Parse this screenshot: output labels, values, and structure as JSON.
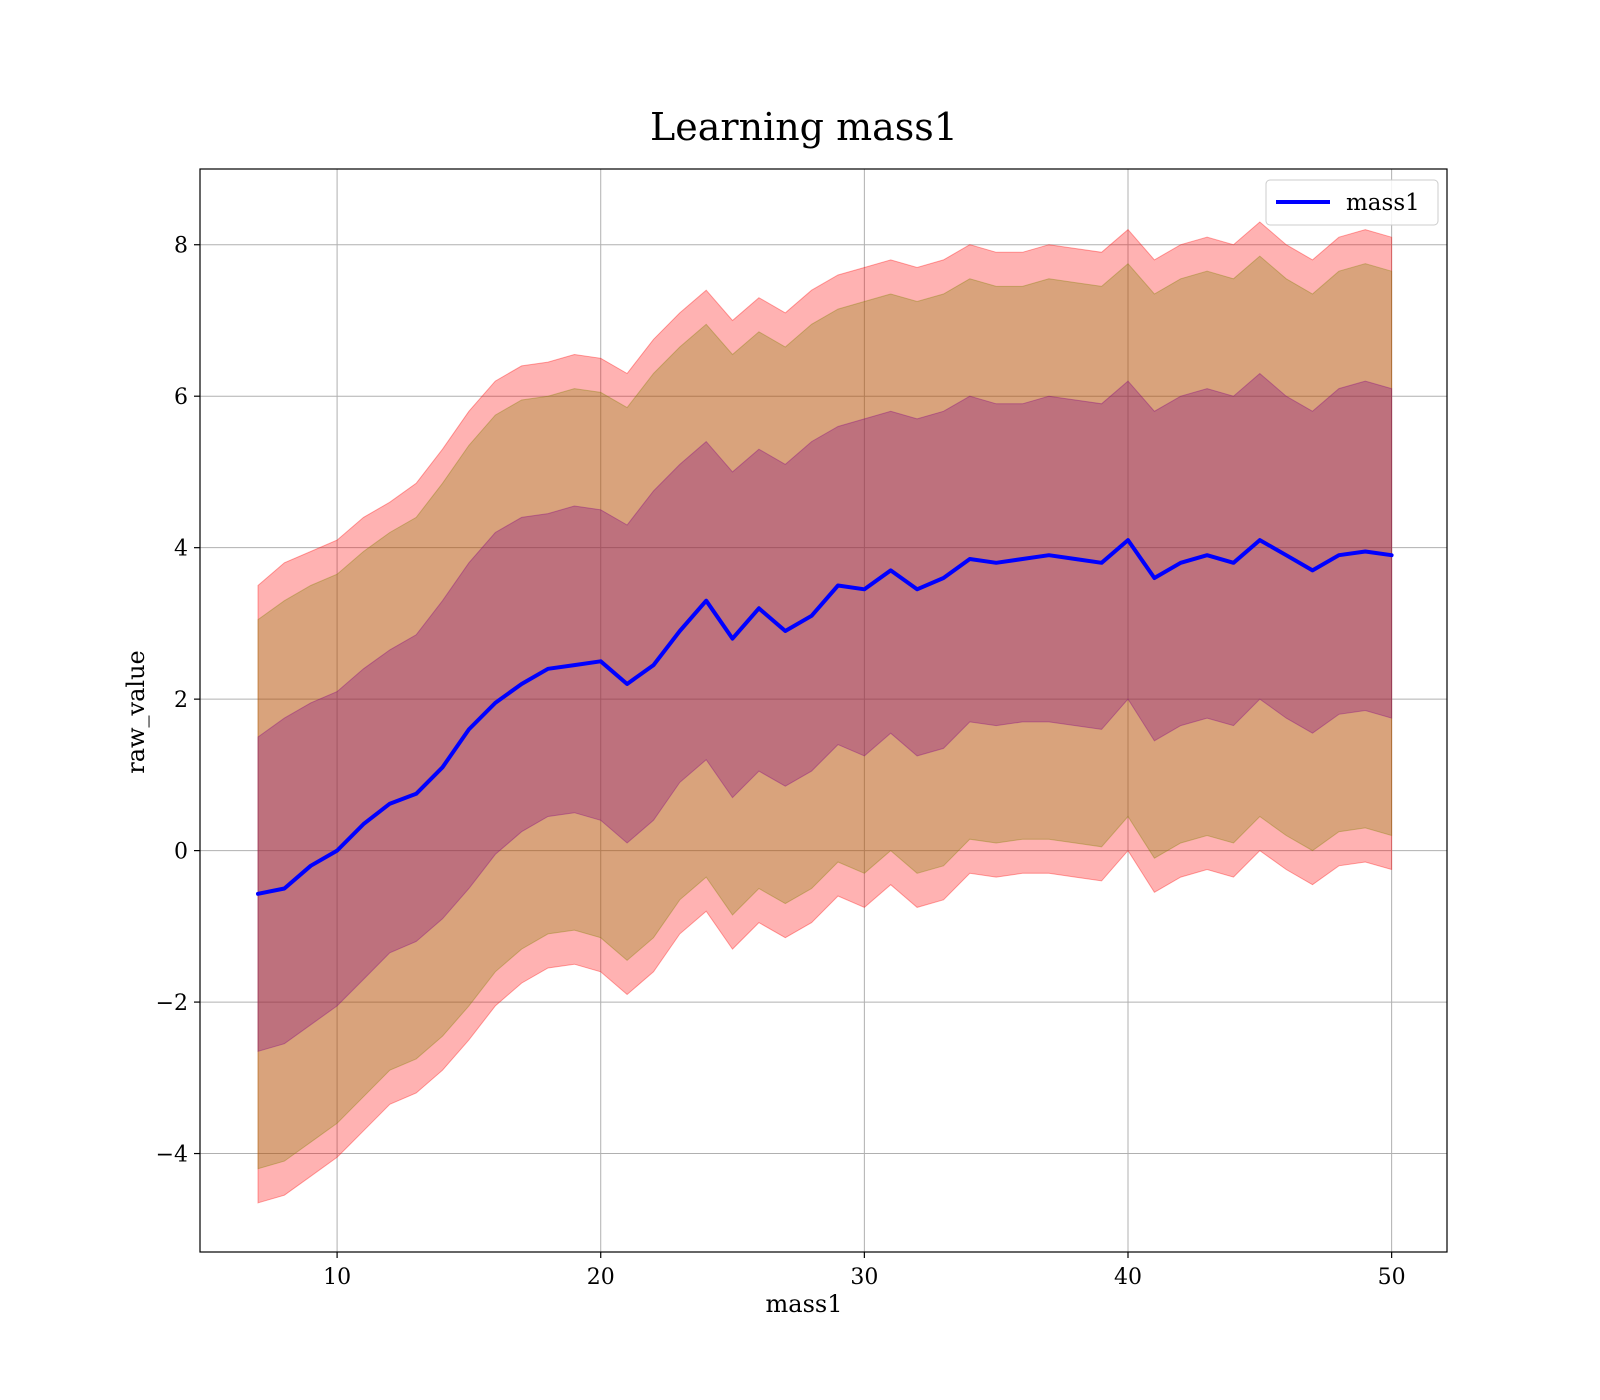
{
  "chart_data": {
    "type": "area",
    "title": "Learning mass1",
    "xlabel": "mass1",
    "ylabel": "raw_value",
    "xlim": [
      4.8,
      52.1
    ],
    "ylim": [
      -5.3,
      9.0
    ],
    "xticks": [
      10,
      20,
      30,
      40,
      50
    ],
    "yticks": [
      -4,
      -2,
      0,
      2,
      4,
      6,
      8
    ],
    "xtick_labels": [
      "10",
      "20",
      "30",
      "40",
      "50"
    ],
    "ytick_labels": [
      "−4",
      "−2",
      "0",
      "2",
      "4",
      "6",
      "8"
    ],
    "grid": true,
    "legend": {
      "placement": "top-right",
      "entries": [
        "mass1"
      ]
    },
    "x": [
      7,
      8,
      9,
      10,
      11,
      12,
      13,
      14,
      15,
      16,
      17,
      18,
      19,
      20,
      21,
      22,
      23,
      24,
      25,
      26,
      27,
      28,
      29,
      30,
      31,
      32,
      33,
      34,
      35,
      36,
      37,
      38,
      39,
      40,
      41,
      42,
      43,
      44,
      45,
      46,
      47,
      48,
      49,
      50
    ],
    "series": [
      {
        "name": "mass1",
        "color": "#0000ff",
        "values": [
          -0.57,
          -0.5,
          -0.2,
          0.0,
          0.35,
          0.62,
          0.75,
          1.1,
          1.6,
          1.95,
          2.2,
          2.4,
          2.45,
          2.5,
          2.2,
          2.45,
          2.9,
          3.3,
          2.8,
          3.2,
          2.9,
          3.1,
          3.5,
          3.45,
          3.7,
          3.45,
          3.6,
          3.85,
          3.8,
          3.85,
          3.9,
          3.85,
          3.8,
          4.1,
          3.6,
          3.8,
          3.9,
          3.8,
          4.1,
          3.9,
          3.7,
          3.9,
          3.95,
          3.9
        ]
      }
    ],
    "bands": [
      {
        "color": "#ff0000",
        "opacity": 0.3,
        "upper": [
          3.5,
          3.8,
          3.95,
          4.1,
          4.4,
          4.6,
          4.85,
          5.3,
          5.8,
          6.2,
          6.4,
          6.45,
          6.55,
          6.5,
          6.3,
          6.75,
          7.1,
          7.4,
          7.0,
          7.3,
          7.1,
          7.4,
          7.6,
          7.7,
          7.8,
          7.7,
          7.8,
          8.0,
          7.9,
          7.9,
          8.0,
          7.95,
          7.9,
          8.2,
          7.8,
          8.0,
          8.1,
          8.0,
          8.3,
          8.0,
          7.8,
          8.1,
          8.2,
          8.1
        ],
        "lower": [
          -4.65,
          -4.55,
          -4.3,
          -4.05,
          -3.7,
          -3.35,
          -3.2,
          -2.9,
          -2.5,
          -2.05,
          -1.75,
          -1.55,
          -1.5,
          -1.6,
          -1.9,
          -1.6,
          -1.1,
          -0.8,
          -1.3,
          -0.95,
          -1.15,
          -0.95,
          -0.6,
          -0.75,
          -0.45,
          -0.75,
          -0.65,
          -0.3,
          -0.35,
          -0.3,
          -0.3,
          -0.35,
          -0.4,
          0.0,
          -0.55,
          -0.35,
          -0.25,
          -0.35,
          0.0,
          -0.25,
          -0.45,
          -0.2,
          -0.15,
          -0.25
        ]
      },
      {
        "color": "#808000",
        "opacity": 0.3,
        "upper": [
          3.05,
          3.3,
          3.5,
          3.65,
          3.95,
          4.2,
          4.4,
          4.85,
          5.35,
          5.75,
          5.95,
          6.0,
          6.1,
          6.05,
          5.85,
          6.3,
          6.65,
          6.95,
          6.55,
          6.85,
          6.65,
          6.95,
          7.15,
          7.25,
          7.35,
          7.25,
          7.35,
          7.55,
          7.45,
          7.45,
          7.55,
          7.5,
          7.45,
          7.75,
          7.35,
          7.55,
          7.65,
          7.55,
          7.85,
          7.55,
          7.35,
          7.65,
          7.75,
          7.65
        ],
        "lower": [
          -4.2,
          -4.1,
          -3.85,
          -3.6,
          -3.25,
          -2.9,
          -2.75,
          -2.45,
          -2.05,
          -1.6,
          -1.3,
          -1.1,
          -1.05,
          -1.15,
          -1.45,
          -1.15,
          -0.65,
          -0.35,
          -0.85,
          -0.5,
          -0.7,
          -0.5,
          -0.15,
          -0.3,
          0.0,
          -0.3,
          -0.2,
          0.15,
          0.1,
          0.15,
          0.15,
          0.1,
          0.05,
          0.45,
          -0.1,
          0.1,
          0.2,
          0.1,
          0.45,
          0.2,
          0.0,
          0.25,
          0.3,
          0.2
        ]
      },
      {
        "color": "#800080",
        "opacity": 0.3,
        "upper": [
          1.5,
          1.75,
          1.95,
          2.1,
          2.4,
          2.65,
          2.85,
          3.3,
          3.8,
          4.2,
          4.4,
          4.45,
          4.55,
          4.5,
          4.3,
          4.75,
          5.1,
          5.4,
          5.0,
          5.3,
          5.1,
          5.4,
          5.6,
          5.7,
          5.8,
          5.7,
          5.8,
          6.0,
          5.9,
          5.9,
          6.0,
          5.95,
          5.9,
          6.2,
          5.8,
          6.0,
          6.1,
          6.0,
          6.3,
          6.0,
          5.8,
          6.1,
          6.2,
          6.1
        ],
        "lower": [
          -2.65,
          -2.55,
          -2.3,
          -2.05,
          -1.7,
          -1.35,
          -1.2,
          -0.9,
          -0.5,
          -0.05,
          0.25,
          0.45,
          0.5,
          0.4,
          0.1,
          0.4,
          0.9,
          1.2,
          0.7,
          1.05,
          0.85,
          1.05,
          1.4,
          1.25,
          1.55,
          1.25,
          1.35,
          1.7,
          1.65,
          1.7,
          1.7,
          1.65,
          1.6,
          2.0,
          1.45,
          1.65,
          1.75,
          1.65,
          2.0,
          1.75,
          1.55,
          1.8,
          1.85,
          1.75
        ]
      }
    ]
  }
}
